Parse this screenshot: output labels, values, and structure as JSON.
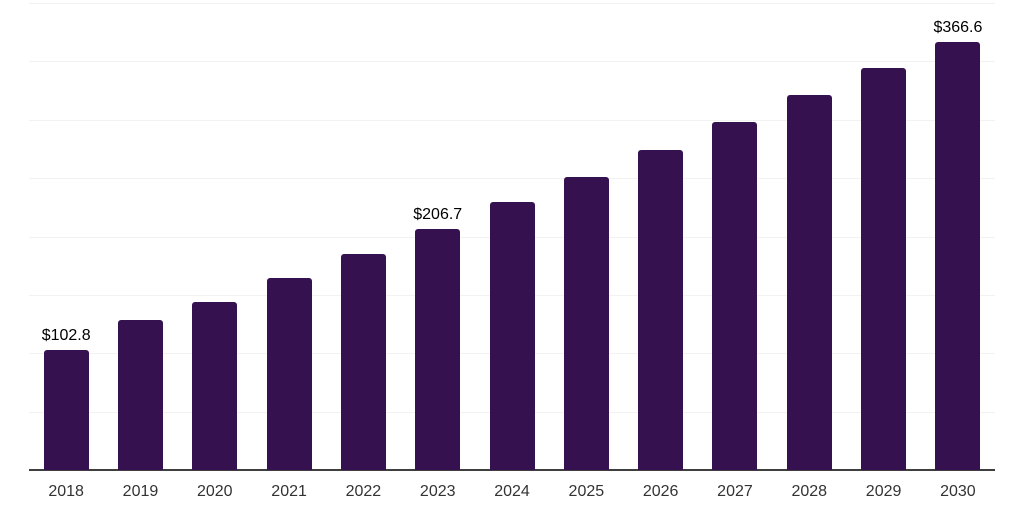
{
  "chart_data": {
    "type": "bar",
    "categories": [
      "2018",
      "2019",
      "2020",
      "2021",
      "2022",
      "2023",
      "2024",
      "2025",
      "2026",
      "2027",
      "2028",
      "2029",
      "2030"
    ],
    "values": [
      102.8,
      128.6,
      143.7,
      164.1,
      184.6,
      206.7,
      229.2,
      251.3,
      273.8,
      298.1,
      321.2,
      344.7,
      366.6
    ],
    "data_labels": [
      {
        "index": 0,
        "text": "$102.8"
      },
      {
        "index": 5,
        "text": "$206.7"
      },
      {
        "index": 12,
        "text": "$366.6"
      }
    ],
    "title": "",
    "xlabel": "",
    "ylabel": "",
    "ylim": [
      0,
      400
    ],
    "gridline_step": 50,
    "grid": "horizontal",
    "legend": "none",
    "bar_color": "#351150",
    "value_prefix": "$"
  },
  "colors": {
    "background": "#ffffff",
    "bar": "#351150",
    "gridline": "#f2f2f2",
    "axis_line": "#3f3f3f",
    "value_label": "#000000",
    "tick_label": "#333333"
  }
}
